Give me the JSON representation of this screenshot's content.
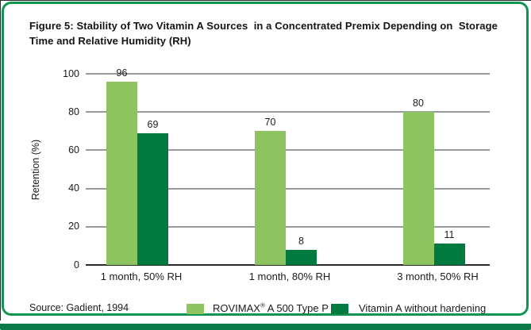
{
  "figure": {
    "title_line1": "Figure 5: Stability of Two Vitamin A Sources  in a Concentrated Premix Depending on  Storage",
    "title_line2": "Time and Relative Humidity (RH)",
    "source": "Source: Gadient, 1994"
  },
  "colors": {
    "frame_border": "#119452",
    "bottom_band": "#0c7b4c",
    "series_light_green": "#8ec45f",
    "series_dark_green": "#007a3e",
    "gridline": "#9a9a9a",
    "axis_line": "#2b2b2b",
    "text": "#1b1b1b"
  },
  "chart_data": {
    "type": "bar",
    "title": "Figure 5: Stability of Two Vitamin A Sources in a Concentrated Premix Depending on Storage Time and Relative Humidity (RH)",
    "categories": [
      "1 month, 50% RH",
      "1 month, 80% RH",
      "3 month, 50% RH"
    ],
    "series": [
      {
        "name": "ROVIMAX® A 500 Type P",
        "color": "#8ec45f",
        "values": [
          96,
          70,
          80
        ]
      },
      {
        "name": "Vitamin A without hardening",
        "color": "#007a3e",
        "values": [
          69,
          8,
          11
        ]
      }
    ],
    "ylabel": "Retention (%)",
    "ylim": [
      0,
      100
    ],
    "yticks": [
      0,
      20,
      40,
      60,
      80,
      100
    ],
    "grid": true,
    "value_labels": true,
    "legend_position": "bottom",
    "source": "Gadient, 1994"
  }
}
